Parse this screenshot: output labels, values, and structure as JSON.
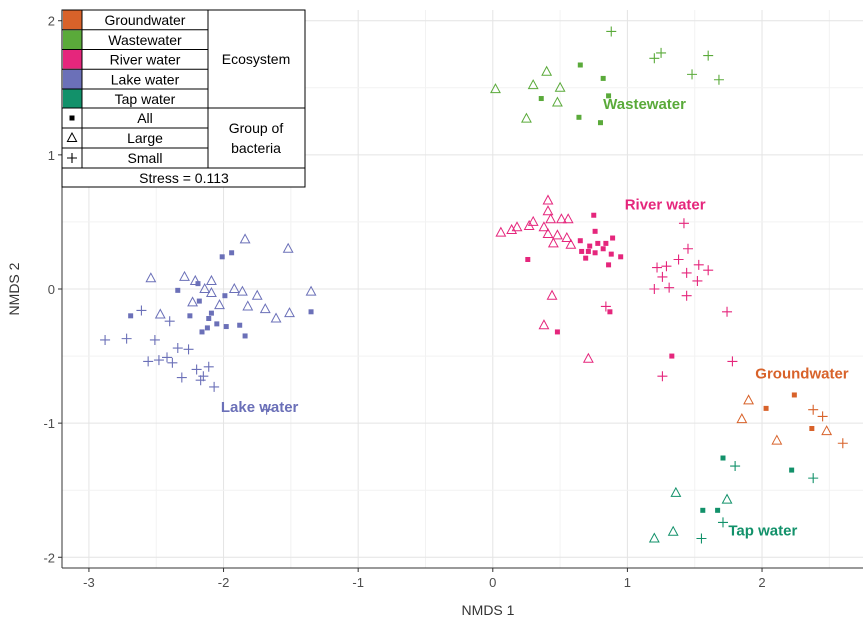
{
  "chart_data": {
    "type": "scatter",
    "xlabel": "NMDS 1",
    "ylabel": "NMDS 2",
    "xlim": [
      -3.2,
      2.75
    ],
    "ylim": [
      -2.08,
      2.08
    ],
    "x_ticks": [
      -3,
      -2,
      -1,
      0,
      1,
      2
    ],
    "y_ticks": [
      -2,
      -1,
      0,
      1,
      2
    ],
    "grid": true,
    "legend": {
      "placement": "top-left",
      "ecosystem_title": "Ecosystem",
      "ecosystem_items": [
        {
          "label": "Groundwater",
          "color": "#D8622A"
        },
        {
          "label": "Wastewater",
          "color": "#5AAA3A"
        },
        {
          "label": "River water",
          "color": "#E5267C"
        },
        {
          "label": "Lake water",
          "color": "#6B70B8"
        },
        {
          "label": "Tap water",
          "color": "#12916A"
        }
      ],
      "group_title": "Group of bacteria",
      "group_items": [
        {
          "label": "All",
          "shape": "square"
        },
        {
          "label": "Large",
          "shape": "triangle"
        },
        {
          "label": "Small",
          "shape": "plus"
        }
      ],
      "stress_text": "Stress = 0.113"
    },
    "annotations": [
      {
        "text": "Wastewater",
        "series": "Wastewater",
        "x": 0.82,
        "y": 1.38
      },
      {
        "text": "River water",
        "series": "River water",
        "x": 0.98,
        "y": 0.63
      },
      {
        "text": "Lake water",
        "series": "Lake water",
        "x": -2.02,
        "y": -0.88
      },
      {
        "text": "Groundwater",
        "series": "Groundwater",
        "x": 1.95,
        "y": -0.63
      },
      {
        "text": "Tap water",
        "series": "Tap water",
        "x": 1.75,
        "y": -1.8
      }
    ],
    "series": [
      {
        "name": "Wastewater",
        "color": "#5AAA3A",
        "points": [
          {
            "shape": "plus",
            "x": 0.88,
            "y": 1.92
          },
          {
            "shape": "plus",
            "x": 1.2,
            "y": 1.72
          },
          {
            "shape": "plus",
            "x": 1.25,
            "y": 1.76
          },
          {
            "shape": "plus",
            "x": 1.6,
            "y": 1.74
          },
          {
            "shape": "plus",
            "x": 1.48,
            "y": 1.6
          },
          {
            "shape": "plus",
            "x": 1.68,
            "y": 1.56
          },
          {
            "shape": "triangle",
            "x": 0.02,
            "y": 1.49
          },
          {
            "shape": "triangle",
            "x": 0.3,
            "y": 1.52
          },
          {
            "shape": "triangle",
            "x": 0.4,
            "y": 1.62
          },
          {
            "shape": "triangle",
            "x": 0.5,
            "y": 1.5
          },
          {
            "shape": "triangle",
            "x": 0.48,
            "y": 1.39
          },
          {
            "shape": "triangle",
            "x": 0.25,
            "y": 1.27
          },
          {
            "shape": "square",
            "x": 0.65,
            "y": 1.67
          },
          {
            "shape": "square",
            "x": 0.82,
            "y": 1.57
          },
          {
            "shape": "square",
            "x": 0.36,
            "y": 1.42
          },
          {
            "shape": "square",
            "x": 0.86,
            "y": 1.44
          },
          {
            "shape": "square",
            "x": 0.64,
            "y": 1.28
          },
          {
            "shape": "square",
            "x": 0.8,
            "y": 1.24
          }
        ]
      },
      {
        "name": "River water",
        "color": "#E5267C",
        "points": [
          {
            "shape": "triangle",
            "x": 0.41,
            "y": 0.66
          },
          {
            "shape": "triangle",
            "x": 0.41,
            "y": 0.58
          },
          {
            "shape": "triangle",
            "x": 0.3,
            "y": 0.5
          },
          {
            "shape": "triangle",
            "x": 0.43,
            "y": 0.52
          },
          {
            "shape": "triangle",
            "x": 0.51,
            "y": 0.52
          },
          {
            "shape": "triangle",
            "x": 0.56,
            "y": 0.52
          },
          {
            "shape": "triangle",
            "x": 0.18,
            "y": 0.46
          },
          {
            "shape": "triangle",
            "x": 0.27,
            "y": 0.47
          },
          {
            "shape": "triangle",
            "x": 0.06,
            "y": 0.42
          },
          {
            "shape": "triangle",
            "x": 0.14,
            "y": 0.44
          },
          {
            "shape": "triangle",
            "x": 0.38,
            "y": 0.46
          },
          {
            "shape": "triangle",
            "x": 0.41,
            "y": 0.41
          },
          {
            "shape": "triangle",
            "x": 0.48,
            "y": 0.4
          },
          {
            "shape": "triangle",
            "x": 0.55,
            "y": 0.38
          },
          {
            "shape": "triangle",
            "x": 0.45,
            "y": 0.34
          },
          {
            "shape": "triangle",
            "x": 0.58,
            "y": 0.33
          },
          {
            "shape": "triangle",
            "x": 0.44,
            "y": -0.05
          },
          {
            "shape": "triangle",
            "x": 0.38,
            "y": -0.27
          },
          {
            "shape": "triangle",
            "x": 0.71,
            "y": -0.52
          },
          {
            "shape": "square",
            "x": 0.75,
            "y": 0.55
          },
          {
            "shape": "square",
            "x": 0.76,
            "y": 0.43
          },
          {
            "shape": "square",
            "x": 0.65,
            "y": 0.36
          },
          {
            "shape": "square",
            "x": 0.72,
            "y": 0.32
          },
          {
            "shape": "square",
            "x": 0.78,
            "y": 0.34
          },
          {
            "shape": "square",
            "x": 0.84,
            "y": 0.34
          },
          {
            "shape": "square",
            "x": 0.89,
            "y": 0.38
          },
          {
            "shape": "square",
            "x": 0.66,
            "y": 0.28
          },
          {
            "shape": "square",
            "x": 0.71,
            "y": 0.28
          },
          {
            "shape": "square",
            "x": 0.76,
            "y": 0.27
          },
          {
            "shape": "square",
            "x": 0.82,
            "y": 0.3
          },
          {
            "shape": "square",
            "x": 0.88,
            "y": 0.26
          },
          {
            "shape": "square",
            "x": 0.95,
            "y": 0.24
          },
          {
            "shape": "square",
            "x": 0.69,
            "y": 0.23
          },
          {
            "shape": "square",
            "x": 0.86,
            "y": 0.18
          },
          {
            "shape": "square",
            "x": 0.26,
            "y": 0.22
          },
          {
            "shape": "square",
            "x": 0.48,
            "y": -0.32
          },
          {
            "shape": "square",
            "x": 0.87,
            "y": -0.17
          },
          {
            "shape": "square",
            "x": 1.33,
            "y": -0.5
          },
          {
            "shape": "plus",
            "x": 1.42,
            "y": 0.49
          },
          {
            "shape": "plus",
            "x": 1.45,
            "y": 0.3
          },
          {
            "shape": "plus",
            "x": 1.38,
            "y": 0.22
          },
          {
            "shape": "plus",
            "x": 1.22,
            "y": 0.16
          },
          {
            "shape": "plus",
            "x": 1.29,
            "y": 0.17
          },
          {
            "shape": "plus",
            "x": 1.53,
            "y": 0.18
          },
          {
            "shape": "plus",
            "x": 1.6,
            "y": 0.14
          },
          {
            "shape": "plus",
            "x": 1.26,
            "y": 0.09
          },
          {
            "shape": "plus",
            "x": 1.44,
            "y": 0.12
          },
          {
            "shape": "plus",
            "x": 1.52,
            "y": 0.06
          },
          {
            "shape": "plus",
            "x": 1.31,
            "y": 0.01
          },
          {
            "shape": "plus",
            "x": 1.2,
            "y": 0.0
          },
          {
            "shape": "plus",
            "x": 1.44,
            "y": -0.05
          },
          {
            "shape": "plus",
            "x": 0.84,
            "y": -0.13
          },
          {
            "shape": "plus",
            "x": 1.74,
            "y": -0.17
          },
          {
            "shape": "plus",
            "x": 1.78,
            "y": -0.54
          },
          {
            "shape": "plus",
            "x": 1.26,
            "y": -0.65
          }
        ]
      },
      {
        "name": "Lake water",
        "color": "#6B70B8",
        "points": [
          {
            "shape": "triangle",
            "x": -1.84,
            "y": 0.37
          },
          {
            "shape": "triangle",
            "x": -1.52,
            "y": 0.3
          },
          {
            "shape": "triangle",
            "x": -2.54,
            "y": 0.08
          },
          {
            "shape": "triangle",
            "x": -2.29,
            "y": 0.09
          },
          {
            "shape": "triangle",
            "x": -2.21,
            "y": 0.06
          },
          {
            "shape": "triangle",
            "x": -2.09,
            "y": 0.06
          },
          {
            "shape": "triangle",
            "x": -2.14,
            "y": 0.0
          },
          {
            "shape": "triangle",
            "x": -2.09,
            "y": -0.03
          },
          {
            "shape": "triangle",
            "x": -1.92,
            "y": 0.0
          },
          {
            "shape": "triangle",
            "x": -1.86,
            "y": -0.02
          },
          {
            "shape": "triangle",
            "x": -1.75,
            "y": -0.05
          },
          {
            "shape": "triangle",
            "x": -1.35,
            "y": -0.02
          },
          {
            "shape": "triangle",
            "x": -2.23,
            "y": -0.1
          },
          {
            "shape": "triangle",
            "x": -2.03,
            "y": -0.12
          },
          {
            "shape": "triangle",
            "x": -1.82,
            "y": -0.13
          },
          {
            "shape": "triangle",
            "x": -1.69,
            "y": -0.15
          },
          {
            "shape": "triangle",
            "x": -1.51,
            "y": -0.18
          },
          {
            "shape": "triangle",
            "x": -1.61,
            "y": -0.22
          },
          {
            "shape": "triangle",
            "x": -2.47,
            "y": -0.19
          },
          {
            "shape": "square",
            "x": -1.94,
            "y": 0.27
          },
          {
            "shape": "square",
            "x": -2.01,
            "y": 0.24
          },
          {
            "shape": "square",
            "x": -2.19,
            "y": 0.04
          },
          {
            "shape": "square",
            "x": -2.34,
            "y": -0.01
          },
          {
            "shape": "square",
            "x": -1.99,
            "y": -0.05
          },
          {
            "shape": "square",
            "x": -2.18,
            "y": -0.09
          },
          {
            "shape": "square",
            "x": -2.25,
            "y": -0.2
          },
          {
            "shape": "square",
            "x": -2.09,
            "y": -0.18
          },
          {
            "shape": "square",
            "x": -2.11,
            "y": -0.22
          },
          {
            "shape": "square",
            "x": -2.05,
            "y": -0.26
          },
          {
            "shape": "square",
            "x": -1.98,
            "y": -0.28
          },
          {
            "shape": "square",
            "x": -1.88,
            "y": -0.27
          },
          {
            "shape": "square",
            "x": -2.12,
            "y": -0.29
          },
          {
            "shape": "square",
            "x": -2.16,
            "y": -0.32
          },
          {
            "shape": "square",
            "x": -2.69,
            "y": -0.2
          },
          {
            "shape": "square",
            "x": -1.84,
            "y": -0.35
          },
          {
            "shape": "square",
            "x": -1.35,
            "y": -0.17
          },
          {
            "shape": "plus",
            "x": -2.61,
            "y": -0.16
          },
          {
            "shape": "plus",
            "x": -2.4,
            "y": -0.24
          },
          {
            "shape": "plus",
            "x": -2.88,
            "y": -0.38
          },
          {
            "shape": "plus",
            "x": -2.72,
            "y": -0.37
          },
          {
            "shape": "plus",
            "x": -2.51,
            "y": -0.38
          },
          {
            "shape": "plus",
            "x": -2.34,
            "y": -0.44
          },
          {
            "shape": "plus",
            "x": -2.26,
            "y": -0.45
          },
          {
            "shape": "plus",
            "x": -2.42,
            "y": -0.51
          },
          {
            "shape": "plus",
            "x": -2.56,
            "y": -0.54
          },
          {
            "shape": "plus",
            "x": -2.48,
            "y": -0.53
          },
          {
            "shape": "plus",
            "x": -2.38,
            "y": -0.55
          },
          {
            "shape": "plus",
            "x": -2.2,
            "y": -0.6
          },
          {
            "shape": "plus",
            "x": -2.11,
            "y": -0.58
          },
          {
            "shape": "plus",
            "x": -2.31,
            "y": -0.66
          },
          {
            "shape": "plus",
            "x": -2.15,
            "y": -0.65
          },
          {
            "shape": "plus",
            "x": -2.17,
            "y": -0.68
          },
          {
            "shape": "plus",
            "x": -2.07,
            "y": -0.73
          },
          {
            "shape": "plus",
            "x": -1.68,
            "y": -0.9
          }
        ]
      },
      {
        "name": "Groundwater",
        "color": "#D8622A",
        "points": [
          {
            "shape": "triangle",
            "x": 1.9,
            "y": -0.83
          },
          {
            "shape": "triangle",
            "x": 1.85,
            "y": -0.97
          },
          {
            "shape": "triangle",
            "x": 2.11,
            "y": -1.13
          },
          {
            "shape": "triangle",
            "x": 2.48,
            "y": -1.06
          },
          {
            "shape": "square",
            "x": 2.24,
            "y": -0.79
          },
          {
            "shape": "square",
            "x": 2.03,
            "y": -0.89
          },
          {
            "shape": "square",
            "x": 2.37,
            "y": -1.04
          },
          {
            "shape": "plus",
            "x": 2.38,
            "y": -0.9
          },
          {
            "shape": "plus",
            "x": 2.45,
            "y": -0.95
          },
          {
            "shape": "plus",
            "x": 2.6,
            "y": -1.15
          }
        ]
      },
      {
        "name": "Tap water",
        "color": "#12916A",
        "points": [
          {
            "shape": "square",
            "x": 1.71,
            "y": -1.26
          },
          {
            "shape": "square",
            "x": 2.22,
            "y": -1.35
          },
          {
            "shape": "square",
            "x": 1.56,
            "y": -1.65
          },
          {
            "shape": "square",
            "x": 1.67,
            "y": -1.65
          },
          {
            "shape": "plus",
            "x": 1.8,
            "y": -1.32
          },
          {
            "shape": "plus",
            "x": 2.38,
            "y": -1.41
          },
          {
            "shape": "plus",
            "x": 1.71,
            "y": -1.74
          },
          {
            "shape": "plus",
            "x": 1.55,
            "y": -1.86
          },
          {
            "shape": "triangle",
            "x": 1.36,
            "y": -1.52
          },
          {
            "shape": "triangle",
            "x": 1.74,
            "y": -1.57
          },
          {
            "shape": "triangle",
            "x": 1.2,
            "y": -1.86
          },
          {
            "shape": "triangle",
            "x": 1.34,
            "y": -1.81
          }
        ]
      }
    ]
  }
}
